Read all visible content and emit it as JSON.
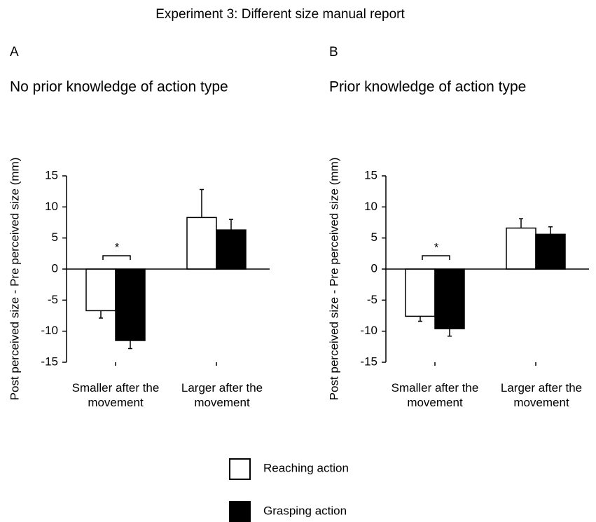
{
  "title": "Experiment 3: Different size manual report",
  "chart_data": [
    {
      "type": "bar",
      "panel": "A",
      "title": "No prior knowledge of action type",
      "ylabel": "Post perceived size - Pre perceived size (mm)",
      "categories": [
        "Smaller after the movement",
        "Larger after the movement"
      ],
      "series": [
        {
          "name": "Reaching action",
          "color": "#ffffff",
          "values": [
            -6.7,
            8.3
          ],
          "errors": [
            1.2,
            4.5
          ]
        },
        {
          "name": "Grasping action",
          "color": "#000000",
          "values": [
            -11.5,
            6.3
          ],
          "errors": [
            1.3,
            1.7
          ]
        }
      ],
      "annotations": [
        "*"
      ],
      "ylim": [
        -15,
        15
      ],
      "yticks": [
        15,
        10,
        5,
        0,
        -5,
        -10,
        -15
      ],
      "grid": false
    },
    {
      "type": "bar",
      "panel": "B",
      "title": "Prior knowledge of action type",
      "ylabel": "Post perceived size - Pre perceived size (mm)",
      "categories": [
        "Smaller after the movement",
        "Larger after the movement"
      ],
      "series": [
        {
          "name": "Reaching action",
          "color": "#ffffff",
          "values": [
            -7.6,
            6.6
          ],
          "errors": [
            0.8,
            1.5
          ]
        },
        {
          "name": "Grasping action",
          "color": "#000000",
          "values": [
            -9.6,
            5.6
          ],
          "errors": [
            1.2,
            1.2
          ]
        }
      ],
      "annotations": [
        "*"
      ],
      "ylim": [
        -15,
        15
      ],
      "yticks": [
        15,
        10,
        5,
        0,
        -5,
        -10,
        -15
      ],
      "grid": false
    }
  ]
}
